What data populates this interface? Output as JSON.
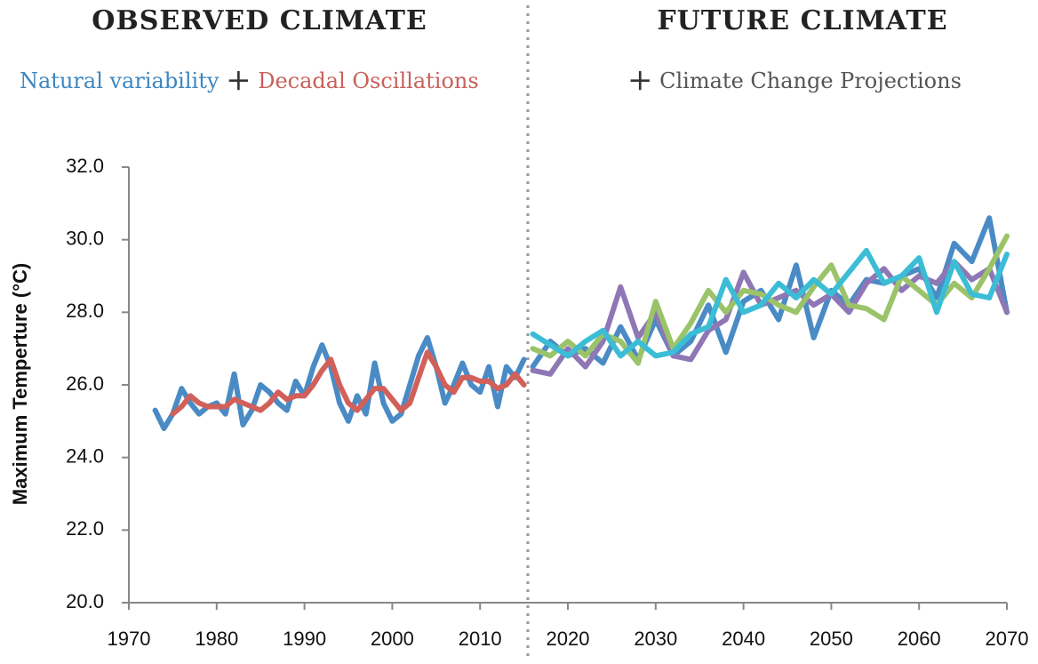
{
  "chart_data": {
    "type": "line",
    "panels": [
      {
        "title": "OBSERVED CLIMATE",
        "legend": [
          {
            "text": "Natural variability",
            "color": "#3d86c0"
          },
          {
            "text": "+",
            "color": "#333333"
          },
          {
            "text": "Decadal Oscillations",
            "color": "#c9605a"
          }
        ]
      },
      {
        "title": "FUTURE CLIMATE",
        "legend": [
          {
            "text": "+",
            "color": "#333333"
          },
          {
            "text": "Climate Change Projections",
            "color": "#555555"
          }
        ]
      }
    ],
    "y_label": "Maximum Temperture (°C)",
    "xlim": [
      1970,
      2070
    ],
    "xticks": [
      1970,
      1980,
      1990,
      2000,
      2010,
      2020,
      2030,
      2040,
      2050,
      2060,
      2070
    ],
    "ylim": [
      20,
      32
    ],
    "yticks": [
      {
        "value": 20,
        "label": "20.0"
      },
      {
        "value": 22,
        "label": "22.0"
      },
      {
        "value": 24,
        "label": "24.0"
      },
      {
        "value": 26,
        "label": "26.0"
      },
      {
        "value": 28,
        "label": "28.0"
      },
      {
        "value": 30,
        "label": "30.0"
      },
      {
        "value": 32,
        "label": "32.0"
      }
    ],
    "grid": false,
    "series": [
      {
        "color": "#4a8bc5",
        "x": [
          1973,
          1974,
          1975,
          1976,
          1977,
          1978,
          1979,
          1980,
          1981,
          1982,
          1983,
          1984,
          1985,
          1986,
          1987,
          1988,
          1989,
          1990,
          1991,
          1992,
          1993,
          1994,
          1995,
          1996,
          1997,
          1998,
          1999,
          2000,
          2001,
          2002,
          2003,
          2004,
          2005,
          2006,
          2007,
          2008,
          2009,
          2010,
          2011,
          2012,
          2013,
          2014,
          2015
        ],
        "values": [
          25.3,
          24.8,
          25.2,
          25.9,
          25.5,
          25.2,
          25.4,
          25.5,
          25.2,
          26.3,
          24.9,
          25.3,
          26.0,
          25.8,
          25.5,
          25.3,
          26.1,
          25.7,
          26.5,
          27.1,
          26.5,
          25.5,
          25.0,
          25.7,
          25.2,
          26.6,
          25.5,
          25.0,
          25.2,
          26.0,
          26.8,
          27.3,
          26.5,
          25.5,
          26.0,
          26.6,
          26.0,
          25.8,
          26.5,
          25.4,
          26.5,
          26.2,
          26.7
        ]
      },
      {
        "color": "#d2605a",
        "x": [
          1975,
          1976,
          1977,
          1978,
          1979,
          1980,
          1981,
          1982,
          1983,
          1984,
          1985,
          1986,
          1987,
          1988,
          1989,
          1990,
          1991,
          1992,
          1993,
          1994,
          1995,
          1996,
          1997,
          1998,
          1999,
          2000,
          2001,
          2002,
          2003,
          2004,
          2005,
          2006,
          2007,
          2008,
          2009,
          2010,
          2011,
          2012,
          2013,
          2014,
          2015
        ],
        "values": [
          25.2,
          25.4,
          25.7,
          25.5,
          25.4,
          25.4,
          25.4,
          25.6,
          25.5,
          25.4,
          25.3,
          25.5,
          25.8,
          25.6,
          25.7,
          25.7,
          26.0,
          26.4,
          26.7,
          26.0,
          25.5,
          25.3,
          25.6,
          25.9,
          25.9,
          25.6,
          25.3,
          25.5,
          26.2,
          26.9,
          26.5,
          26.0,
          25.8,
          26.2,
          26.2,
          26.1,
          26.1,
          25.9,
          26.0,
          26.3,
          26.0
        ]
      },
      {
        "color": "#4a8bc5",
        "x": [
          2016,
          2018,
          2020,
          2022,
          2024,
          2026,
          2028,
          2030,
          2032,
          2034,
          2036,
          2038,
          2040,
          2042,
          2044,
          2046,
          2048,
          2050,
          2052,
          2054,
          2056,
          2058,
          2060,
          2062,
          2064,
          2066,
          2068,
          2070
        ],
        "values": [
          26.5,
          27.2,
          26.8,
          27.0,
          26.6,
          27.6,
          26.7,
          27.8,
          26.8,
          27.2,
          28.2,
          26.9,
          28.3,
          28.6,
          27.8,
          29.3,
          27.3,
          28.6,
          28.2,
          28.9,
          28.8,
          29.0,
          29.2,
          28.4,
          29.9,
          29.4,
          30.6,
          28.0
        ]
      },
      {
        "color": "#8f77b5",
        "x": [
          2016,
          2018,
          2020,
          2022,
          2024,
          2026,
          2028,
          2030,
          2032,
          2034,
          2036,
          2038,
          2040,
          2042,
          2044,
          2046,
          2048,
          2050,
          2052,
          2054,
          2056,
          2058,
          2060,
          2062,
          2064,
          2066,
          2068,
          2070
        ],
        "values": [
          26.4,
          26.3,
          27.0,
          26.5,
          27.2,
          28.7,
          27.3,
          28.0,
          26.8,
          26.7,
          27.5,
          27.8,
          29.1,
          28.2,
          28.4,
          28.6,
          28.2,
          28.5,
          28.0,
          28.8,
          29.2,
          28.6,
          29.0,
          28.8,
          29.4,
          28.9,
          29.2,
          28.0
        ]
      },
      {
        "color": "#9bc36a",
        "x": [
          2016,
          2018,
          2020,
          2022,
          2024,
          2026,
          2028,
          2030,
          2032,
          2034,
          2036,
          2038,
          2040,
          2042,
          2044,
          2046,
          2048,
          2050,
          2052,
          2054,
          2056,
          2058,
          2060,
          2062,
          2064,
          2066,
          2068,
          2070
        ],
        "values": [
          27.0,
          26.8,
          27.2,
          26.8,
          27.4,
          27.2,
          26.6,
          28.3,
          27.0,
          27.7,
          28.6,
          28.0,
          28.6,
          28.5,
          28.2,
          28.0,
          28.7,
          29.3,
          28.2,
          28.1,
          27.8,
          29.0,
          28.6,
          28.2,
          28.8,
          28.4,
          29.2,
          30.1
        ]
      },
      {
        "color": "#3bbdd6",
        "x": [
          2016,
          2018,
          2020,
          2022,
          2024,
          2026,
          2028,
          2030,
          2032,
          2034,
          2036,
          2038,
          2040,
          2042,
          2044,
          2046,
          2048,
          2050,
          2052,
          2054,
          2056,
          2058,
          2060,
          2062,
          2064,
          2066,
          2068,
          2070
        ],
        "values": [
          27.4,
          27.1,
          26.8,
          27.2,
          27.5,
          26.8,
          27.2,
          26.8,
          26.9,
          27.4,
          27.6,
          28.9,
          28.0,
          28.2,
          28.8,
          28.4,
          28.9,
          28.5,
          29.1,
          29.7,
          28.8,
          29.0,
          29.5,
          28.0,
          29.4,
          28.5,
          28.4,
          29.6
        ]
      }
    ]
  }
}
